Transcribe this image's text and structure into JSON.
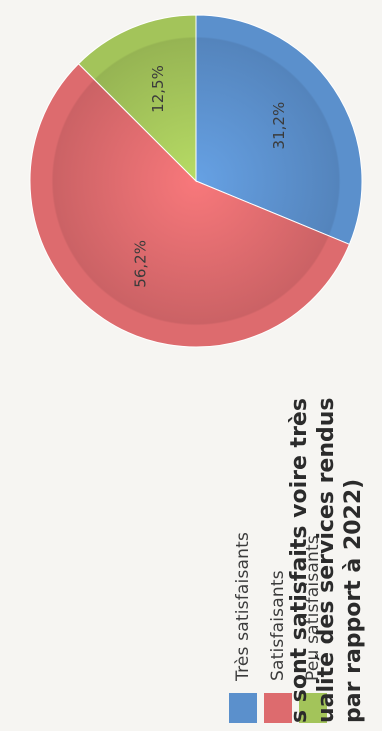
{
  "chart_data": {
    "type": "pie",
    "slices": [
      {
        "label": "Très satisfaisants",
        "value": 31.2,
        "display": "31,2%",
        "color": "#5b90cc"
      },
      {
        "label": "Satisfaisants",
        "value": 56.2,
        "display": "56,2%",
        "color": "#dd6b6e"
      },
      {
        "label": "Peu satisfaisants",
        "value": 12.5,
        "display": "12,5%",
        "color": "#a3c45a"
      }
    ],
    "legend": [
      "Très satisfaisants",
      "Satisfaisants",
      "Peu satisfaisants"
    ],
    "legend_position": "left"
  },
  "caption": {
    "lines": [
      "s sont satisfaits voire très",
      "ualité des services rendus",
      "par rapport à 2022)"
    ]
  }
}
